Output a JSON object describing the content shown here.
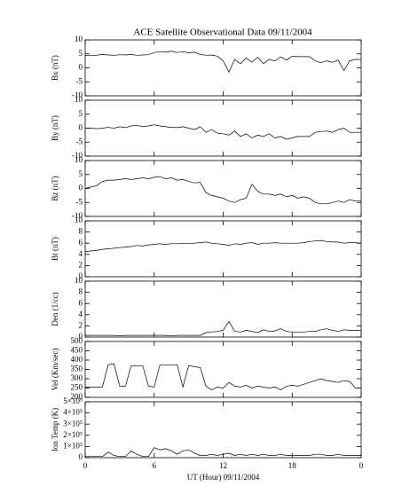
{
  "title": "ACE Satellite Observational Data   09/11/2004",
  "chart_data": [
    {
      "type": "line",
      "ylabel": "Bx (nT)",
      "color": "#000000",
      "xlim": [
        0,
        24
      ],
      "xticks": [
        0,
        6,
        12,
        18,
        24
      ],
      "ylim": [
        -10,
        10
      ],
      "yticks": [
        -10,
        -5,
        0,
        5,
        10
      ],
      "x": [
        0,
        0.5,
        1,
        1.5,
        2,
        2.5,
        3,
        3.5,
        4,
        4.5,
        5,
        5.5,
        6,
        6.5,
        7,
        7.5,
        8,
        8.5,
        9,
        9.5,
        10,
        10.5,
        11,
        11.5,
        12,
        12.5,
        13,
        13.5,
        14,
        14.5,
        15,
        15.5,
        16,
        16.5,
        17,
        17.5,
        18,
        18.5,
        19,
        19.5,
        20,
        20.5,
        21,
        21.5,
        22,
        22.5,
        23,
        23.5,
        24
      ],
      "values": [
        4.5,
        4.5,
        4.5,
        4.8,
        4.6,
        4.5,
        4.7,
        4.6,
        4.8,
        4.5,
        4.6,
        4.7,
        5.5,
        5.8,
        5.6,
        6,
        5.5,
        5.8,
        5.4,
        5.6,
        4.8,
        4.5,
        4.6,
        4.2,
        2.5,
        -1.5,
        3,
        1.5,
        3.5,
        2,
        3.8,
        1.5,
        3,
        2.5,
        4,
        2.8,
        4.2,
        4,
        4,
        4,
        2.5,
        1.8,
        2.5,
        2,
        2.8,
        -1,
        2.5,
        3,
        3
      ]
    },
    {
      "type": "line",
      "ylabel": "By (nT)",
      "color": "#000000",
      "xlim": [
        0,
        24
      ],
      "xticks": [
        0,
        6,
        12,
        18,
        24
      ],
      "ylim": [
        -10,
        10
      ],
      "yticks": [
        -10,
        -5,
        0,
        5,
        10
      ],
      "x": [
        0,
        0.5,
        1,
        1.5,
        2,
        2.5,
        3,
        3.5,
        4,
        4.5,
        5,
        5.5,
        6,
        6.5,
        7,
        7.5,
        8,
        8.5,
        9,
        9.5,
        10,
        10.5,
        11,
        11.5,
        12,
        12.5,
        13,
        13.5,
        14,
        14.5,
        15,
        15.5,
        16,
        16.5,
        17,
        17.5,
        18,
        18.5,
        19,
        19.5,
        20,
        20.5,
        21,
        21.5,
        22,
        22.5,
        23,
        23.5,
        24
      ],
      "values": [
        0,
        0,
        -0.2,
        0,
        0.3,
        0,
        0.5,
        0.2,
        0.8,
        1,
        0.5,
        0.8,
        1.2,
        0.8,
        0.5,
        0.3,
        0.2,
        0.5,
        0,
        -0.5,
        0.5,
        -1.5,
        -0.5,
        -1.8,
        -2,
        -2.5,
        -1,
        -3,
        -2,
        -3.5,
        -2.5,
        -3,
        -2,
        -3.5,
        -3,
        -4,
        -3.5,
        -3,
        -3,
        -3,
        -1.5,
        -1.2,
        -1,
        -1.5,
        -0.5,
        0,
        -1.5,
        -1.5,
        -1.5
      ]
    },
    {
      "type": "line",
      "ylabel": "Bz (nT)",
      "color": "#000000",
      "xlim": [
        0,
        24
      ],
      "xticks": [
        0,
        6,
        12,
        18,
        24
      ],
      "ylim": [
        -10,
        10
      ],
      "yticks": [
        -10,
        -5,
        0,
        5,
        10
      ],
      "x": [
        0,
        0.5,
        1,
        1.5,
        2,
        2.5,
        3,
        3.5,
        4,
        4.5,
        5,
        5.5,
        6,
        6.5,
        7,
        7.5,
        8,
        8.5,
        9,
        9.5,
        10,
        10.5,
        11,
        11.5,
        12,
        12.5,
        13,
        13.5,
        14,
        14.5,
        15,
        15.5,
        16,
        16.5,
        17,
        17.5,
        18,
        18.5,
        19,
        19.5,
        20,
        20.5,
        21,
        21.5,
        22,
        22.5,
        23,
        23.5,
        24
      ],
      "values": [
        0,
        0.5,
        1,
        2.5,
        3,
        3,
        3.2,
        3.5,
        3.2,
        3.5,
        3.8,
        3.5,
        4,
        4.2,
        3.5,
        3.8,
        3,
        3.2,
        2.5,
        2,
        2.2,
        -1.5,
        -2.5,
        -3,
        -3.5,
        -4.5,
        -5,
        -4,
        -3.5,
        1.5,
        -1,
        -2,
        -2,
        -2.5,
        -2,
        -3,
        -2.5,
        -3.5,
        -3,
        -3.5,
        -5,
        -5.5,
        -5.5,
        -5,
        -4.5,
        -5,
        -4,
        -4.5,
        -4.5
      ]
    },
    {
      "type": "line",
      "ylabel": "Bt (nT)",
      "color": "#000000",
      "xlim": [
        0,
        24
      ],
      "xticks": [
        0,
        6,
        12,
        18,
        24
      ],
      "ylim": [
        0,
        10
      ],
      "yticks": [
        0,
        2,
        4,
        6,
        8,
        10
      ],
      "x": [
        0,
        0.5,
        1,
        1.5,
        2,
        2.5,
        3,
        3.5,
        4,
        4.5,
        5,
        5.5,
        6,
        6.5,
        7,
        7.5,
        8,
        8.5,
        9,
        9.5,
        10,
        10.5,
        11,
        11.5,
        12,
        12.5,
        13,
        13.5,
        14,
        14.5,
        15,
        15.5,
        16,
        16.5,
        17,
        17.5,
        18,
        18.5,
        19,
        19.5,
        20,
        20.5,
        21,
        21.5,
        22,
        22.5,
        23,
        23.5,
        24
      ],
      "values": [
        4.5,
        4.6,
        4.7,
        4.9,
        5,
        5.1,
        5.2,
        5.3,
        5.4,
        5.6,
        5.5,
        5.7,
        5.8,
        5.9,
        5.8,
        5.9,
        5.9,
        6,
        5.9,
        6,
        6.1,
        6.2,
        6,
        5.9,
        5.8,
        5.6,
        5.9,
        5.8,
        6,
        6.1,
        5.8,
        6,
        6,
        6.1,
        6,
        6,
        6,
        6,
        6.1,
        6.3,
        6.4,
        6.5,
        6.3,
        6.2,
        6.2,
        6,
        6.1,
        6.1,
        6
      ]
    },
    {
      "type": "line",
      "ylabel": "Den (1/cc)",
      "color": "#000000",
      "xlim": [
        0,
        24
      ],
      "xticks": [
        0,
        6,
        12,
        18,
        24
      ],
      "ylim": [
        0,
        10
      ],
      "yticks": [
        0,
        2,
        4,
        6,
        8,
        10
      ],
      "x": [
        0,
        0.5,
        1,
        1.5,
        2,
        2.5,
        3,
        3.5,
        4,
        4.5,
        5,
        5.5,
        6,
        6.5,
        7,
        7.5,
        8,
        8.5,
        9,
        9.5,
        10,
        10.5,
        11,
        11.5,
        12,
        12.5,
        13,
        13.5,
        14,
        14.5,
        15,
        15.5,
        16,
        16.5,
        17,
        17.5,
        18,
        18.5,
        19,
        19.5,
        20,
        20.5,
        21,
        21.5,
        22,
        22.5,
        23,
        23.5,
        24
      ],
      "values": [
        0.3,
        0.3,
        0.3,
        0.3,
        0.3,
        0.3,
        0.2,
        0.3,
        0.3,
        0.3,
        0.3,
        0.3,
        0.3,
        0.3,
        0.3,
        0.2,
        0.3,
        0.3,
        0.3,
        0.3,
        0.3,
        0.8,
        0.9,
        1,
        1.2,
        2.8,
        1,
        0.9,
        1.2,
        1,
        0.8,
        1.3,
        1,
        1.1,
        1.5,
        1,
        0.9,
        0.9,
        0.9,
        1,
        1,
        1.3,
        1.5,
        1.2,
        1,
        1.3,
        1.2,
        1.2,
        1.2
      ]
    },
    {
      "type": "line",
      "ylabel": "Vel (Km/sec)",
      "color": "#000000",
      "xlim": [
        0,
        24
      ],
      "xticks": [
        0,
        6,
        12,
        18,
        24
      ],
      "ylim": [
        200,
        500
      ],
      "yticks": [
        200,
        250,
        300,
        350,
        400,
        450,
        500
      ],
      "x": [
        0,
        0.5,
        1,
        1.5,
        2,
        2.5,
        3,
        3.5,
        4,
        4.5,
        5,
        5.5,
        6,
        6.5,
        7,
        7.5,
        8,
        8.5,
        9,
        9.5,
        10,
        10.5,
        11,
        11.5,
        12,
        12.5,
        13,
        13.5,
        14,
        14.5,
        15,
        15.5,
        16,
        16.5,
        17,
        17.5,
        18,
        18.5,
        19,
        19.5,
        20,
        20.5,
        21,
        21.5,
        22,
        22.5,
        23,
        23.5,
        24
      ],
      "values": [
        255,
        255,
        255,
        255,
        375,
        380,
        260,
        260,
        370,
        370,
        370,
        260,
        255,
        375,
        375,
        375,
        375,
        255,
        370,
        365,
        360,
        260,
        240,
        255,
        250,
        280,
        260,
        255,
        265,
        250,
        260,
        255,
        250,
        255,
        240,
        260,
        265,
        260,
        270,
        280,
        290,
        300,
        290,
        285,
        280,
        290,
        285,
        250,
        250
      ]
    },
    {
      "type": "line",
      "ylabel": "Ion Temp (K)",
      "xlabel": "UT (Hour)  09/11/2004",
      "color": "#000000",
      "xlim": [
        0,
        24
      ],
      "xticks": [
        0,
        6,
        12,
        18,
        {
          "value": 24,
          "label": "0"
        }
      ],
      "ylim": [
        0,
        500000
      ],
      "yticks": [
        0,
        {
          "value": 100000,
          "label": "1×10⁵"
        },
        {
          "value": 200000,
          "label": "2×10⁵"
        },
        {
          "value": 300000,
          "label": "3×10⁵"
        },
        {
          "value": 400000,
          "label": "4×10⁵"
        },
        {
          "value": 500000,
          "label": "5×10⁵"
        }
      ],
      "x": [
        0,
        0.5,
        1,
        1.5,
        2,
        2.5,
        3,
        3.5,
        4,
        4.5,
        5,
        5.5,
        6,
        6.5,
        7,
        7.5,
        8,
        8.5,
        9,
        9.5,
        10,
        10.5,
        11,
        11.5,
        12,
        12.5,
        13,
        13.5,
        14,
        14.5,
        15,
        15.5,
        16,
        16.5,
        17,
        17.5,
        18,
        18.5,
        19,
        19.5,
        20,
        20.5,
        21,
        21.5,
        22,
        22.5,
        23,
        23.5,
        24
      ],
      "values": [
        10000,
        10000,
        10000,
        10000,
        50000,
        20000,
        10000,
        10000,
        60000,
        30000,
        10000,
        10000,
        90000,
        70000,
        80000,
        60000,
        30000,
        60000,
        70000,
        40000,
        20000,
        20000,
        30000,
        20000,
        30000,
        40000,
        20000,
        30000,
        20000,
        30000,
        20000,
        30000,
        20000,
        20000,
        30000,
        20000,
        20000,
        20000,
        20000,
        20000,
        30000,
        30000,
        20000,
        20000,
        30000,
        20000,
        20000,
        20000,
        20000
      ]
    }
  ]
}
